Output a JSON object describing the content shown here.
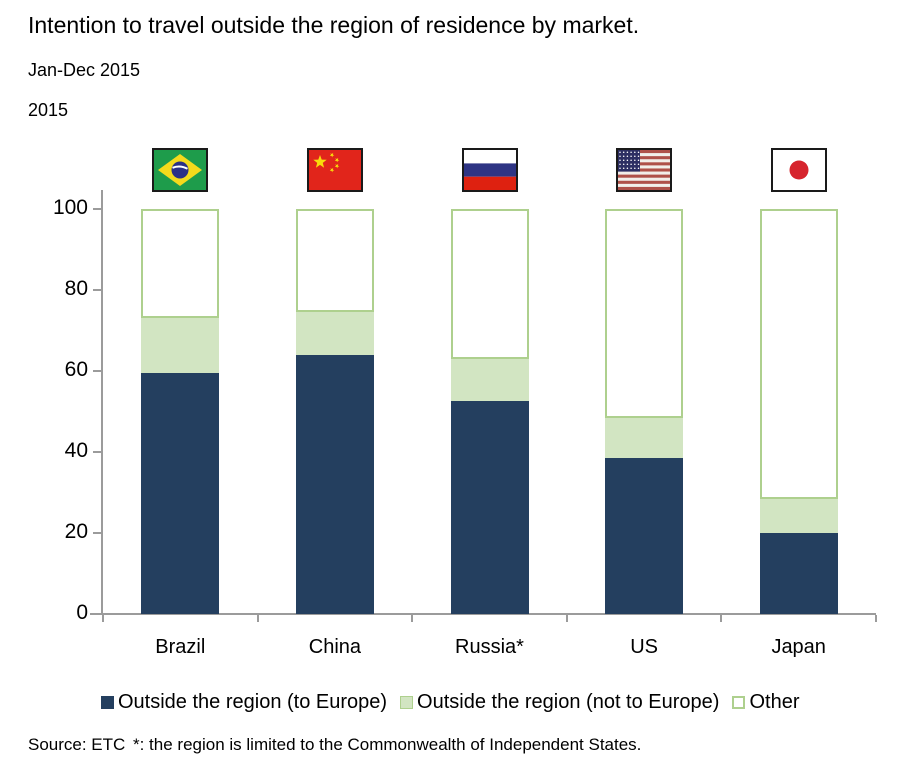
{
  "title": "Intention to travel outside the region of residence by market.",
  "subtitle": "Jan-Dec 2015",
  "year_label": "2015",
  "source": {
    "label": "Source: ETC",
    "note": "*: the region is limited to the Commonwealth of Independent States."
  },
  "colors": {
    "navy": "#243F5F",
    "green_fill": "#D2E5C2",
    "green_border": "#AED08E",
    "axis": "#9B9B9B",
    "text": "#000000",
    "flag_border": "#1A1A1A"
  },
  "flags": [
    {
      "country": "Brazil",
      "icon": "brazil-flag-icon"
    },
    {
      "country": "China",
      "icon": "china-flag-icon"
    },
    {
      "country": "Russia",
      "icon": "russia-flag-icon"
    },
    {
      "country": "United States",
      "icon": "us-flag-icon"
    },
    {
      "country": "Japan",
      "icon": "japan-flag-icon"
    }
  ],
  "chart_data": {
    "type": "bar",
    "stacked": true,
    "unit": "percent of respondents",
    "title": "Intention to travel outside the region of residence by market.",
    "categories": [
      "Brazil",
      "China",
      "Russia*",
      "US",
      "Japan"
    ],
    "series": [
      {
        "name": "Outside the region (to Europe)",
        "color": "#243F5F",
        "values": [
          59.5,
          64,
          52.5,
          38.5,
          20
        ]
      },
      {
        "name": "Outside the region (not to Europe)",
        "color": "#D2E5C2",
        "values": [
          13.5,
          10.5,
          10.5,
          10,
          8.5
        ]
      },
      {
        "name": "Other",
        "color": "#FFFFFF",
        "values": [
          27,
          25.5,
          37,
          51.5,
          71.5
        ]
      }
    ],
    "xlabel": "",
    "ylabel": "",
    "ylim": [
      0,
      100
    ],
    "yticks": [
      0,
      20,
      40,
      60,
      80,
      100
    ],
    "grid": false,
    "legend_position": "bottom"
  }
}
